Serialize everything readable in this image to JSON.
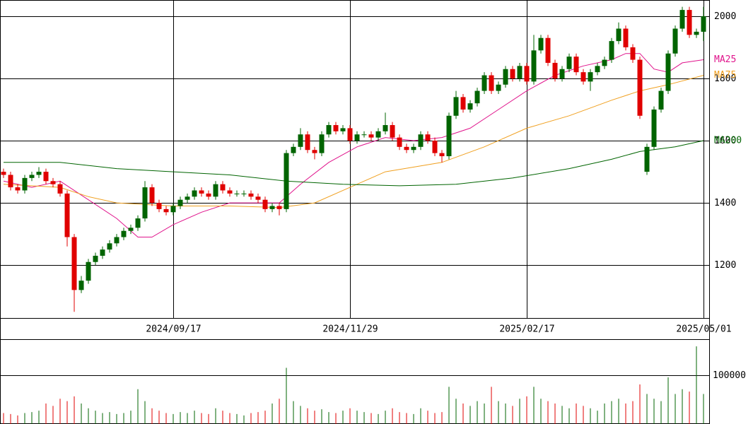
{
  "chart_data": {
    "type": "candlestick",
    "up_color": "#006400",
    "down_color": "#e00000",
    "ylim": [
      1030,
      2052
    ],
    "yticks": [
      1200,
      1400,
      1600,
      1800,
      2000
    ],
    "xlim": [
      -0.5,
      99.8
    ],
    "xticks": [
      {
        "value": 24,
        "label": "2024/09/17"
      },
      {
        "value": 49,
        "label": "2024/11/29"
      },
      {
        "value": 74,
        "label": "2025/02/17"
      },
      {
        "value": 99,
        "label": "2025/05/01"
      }
    ],
    "open": [
      1500,
      1490,
      1450,
      1440,
      1480,
      1490,
      1500,
      1470,
      1460,
      1430,
      1290,
      1120,
      1150,
      1210,
      1230,
      1250,
      1270,
      1290,
      1310,
      1320,
      1350,
      1450,
      1400,
      1380,
      1370,
      1390,
      1410,
      1420,
      1440,
      1430,
      1420,
      1460,
      1440,
      1430,
      1430,
      1430,
      1420,
      1410,
      1380,
      1390,
      1380,
      1560,
      1580,
      1620,
      1570,
      1560,
      1620,
      1650,
      1630,
      1640,
      1600,
      1620,
      1620,
      1610,
      1630,
      1650,
      1610,
      1580,
      1570,
      1580,
      1620,
      1600,
      1560,
      1550,
      1680,
      1740,
      1700,
      1720,
      1760,
      1810,
      1760,
      1780,
      1830,
      1800,
      1840,
      1790,
      1890,
      1930,
      1850,
      1800,
      1830,
      1870,
      1820,
      1790,
      1820,
      1840,
      1860,
      1920,
      1960,
      1900,
      1860,
      1500,
      1580,
      1700,
      1760,
      1880,
      1960,
      2020,
      1940,
      1950
    ],
    "high": [
      1510,
      1500,
      1460,
      1490,
      1500,
      1515,
      1510,
      1480,
      1470,
      1440,
      1300,
      1165,
      1220,
      1240,
      1260,
      1280,
      1300,
      1320,
      1330,
      1360,
      1470,
      1460,
      1410,
      1390,
      1400,
      1420,
      1430,
      1450,
      1450,
      1440,
      1470,
      1470,
      1450,
      1440,
      1440,
      1440,
      1430,
      1420,
      1400,
      1400,
      1570,
      1590,
      1640,
      1630,
      1580,
      1630,
      1660,
      1660,
      1650,
      1650,
      1630,
      1630,
      1630,
      1640,
      1690,
      1660,
      1620,
      1590,
      1590,
      1630,
      1630,
      1610,
      1570,
      1690,
      1760,
      1750,
      1730,
      1770,
      1820,
      1820,
      1790,
      1840,
      1840,
      1850,
      1850,
      1940,
      1940,
      1940,
      1860,
      1840,
      1880,
      1880,
      1830,
      1830,
      1850,
      1870,
      1930,
      1980,
      1970,
      1910,
      1870,
      1590,
      1710,
      1770,
      1890,
      1970,
      2030,
      2030,
      1960,
      2030
    ],
    "low": [
      1480,
      1440,
      1430,
      1430,
      1470,
      1480,
      1460,
      1450,
      1420,
      1260,
      1050,
      1110,
      1140,
      1200,
      1220,
      1240,
      1260,
      1280,
      1300,
      1310,
      1340,
      1390,
      1370,
      1360,
      1360,
      1380,
      1400,
      1410,
      1420,
      1410,
      1410,
      1430,
      1420,
      1420,
      1420,
      1410,
      1400,
      1370,
      1370,
      1360,
      1370,
      1550,
      1570,
      1560,
      1540,
      1550,
      1610,
      1620,
      1620,
      1590,
      1590,
      1610,
      1600,
      1600,
      1620,
      1600,
      1570,
      1560,
      1560,
      1570,
      1590,
      1550,
      1530,
      1540,
      1670,
      1690,
      1690,
      1710,
      1750,
      1750,
      1750,
      1770,
      1790,
      1790,
      1780,
      1780,
      1880,
      1840,
      1790,
      1790,
      1820,
      1810,
      1780,
      1760,
      1810,
      1830,
      1850,
      1910,
      1890,
      1850,
      1670,
      1490,
      1570,
      1690,
      1750,
      1870,
      1950,
      1930,
      1930,
      1920
    ],
    "close": [
      1490,
      1450,
      1440,
      1480,
      1490,
      1500,
      1470,
      1460,
      1430,
      1290,
      1120,
      1150,
      1210,
      1230,
      1250,
      1270,
      1290,
      1310,
      1320,
      1350,
      1450,
      1400,
      1380,
      1370,
      1390,
      1410,
      1420,
      1440,
      1430,
      1420,
      1460,
      1440,
      1430,
      1430,
      1430,
      1420,
      1410,
      1380,
      1390,
      1380,
      1560,
      1580,
      1620,
      1570,
      1560,
      1620,
      1650,
      1630,
      1640,
      1600,
      1620,
      1620,
      1610,
      1630,
      1650,
      1610,
      1580,
      1570,
      1580,
      1620,
      1600,
      1560,
      1550,
      1680,
      1740,
      1700,
      1720,
      1760,
      1810,
      1760,
      1780,
      1830,
      1800,
      1840,
      1790,
      1890,
      1930,
      1850,
      1800,
      1830,
      1870,
      1820,
      1790,
      1820,
      1840,
      1860,
      1920,
      1960,
      1900,
      1860,
      1680,
      1580,
      1700,
      1760,
      1880,
      1960,
      2020,
      1940,
      1950,
      2000
    ],
    "moving_averages": [
      {
        "name": "MA25",
        "color": "#e0148c",
        "x": [
          0,
          4,
          8,
          12,
          16,
          19,
          21,
          24,
          28,
          32,
          36,
          39,
          42,
          46,
          50,
          54,
          58,
          62,
          66,
          70,
          74,
          78,
          82,
          86,
          88,
          90,
          92,
          94,
          96,
          99
        ],
        "values": [
          1470,
          1450,
          1470,
          1410,
          1350,
          1290,
          1290,
          1330,
          1370,
          1400,
          1400,
          1400,
          1460,
          1530,
          1580,
          1610,
          1600,
          1610,
          1640,
          1700,
          1760,
          1810,
          1840,
          1860,
          1880,
          1880,
          1830,
          1820,
          1850,
          1860
        ]
      },
      {
        "name": "MA75",
        "color": "#f0a020",
        "x": [
          0,
          8,
          12,
          16,
          24,
          32,
          39,
          44,
          50,
          54,
          62,
          68,
          74,
          80,
          86,
          90,
          94,
          99
        ],
        "values": [
          1460,
          1450,
          1420,
          1400,
          1390,
          1390,
          1385,
          1400,
          1460,
          1500,
          1530,
          1580,
          1640,
          1680,
          1730,
          1760,
          1780,
          1810
        ]
      },
      {
        "name": "MA200",
        "color": "#006400",
        "x": [
          0,
          8,
          16,
          24,
          32,
          40,
          48,
          56,
          64,
          72,
          80,
          86,
          90,
          95,
          99
        ],
        "values": [
          1530,
          1530,
          1510,
          1500,
          1490,
          1470,
          1460,
          1455,
          1460,
          1480,
          1510,
          1540,
          1565,
          1580,
          1600
        ]
      }
    ],
    "volume": {
      "ylim": [
        0,
        175000
      ],
      "yticks": [
        100000
      ],
      "values": [
        20000,
        18000,
        15000,
        20000,
        22000,
        25000,
        40000,
        35000,
        50000,
        45000,
        55000,
        40000,
        30000,
        25000,
        20000,
        22000,
        18000,
        20000,
        25000,
        70000,
        45000,
        30000,
        25000,
        20000,
        18000,
        22000,
        20000,
        25000,
        20000,
        18000,
        30000,
        25000,
        20000,
        18000,
        15000,
        20000,
        22000,
        25000,
        40000,
        50000,
        115000,
        45000,
        35000,
        30000,
        25000,
        28000,
        22000,
        20000,
        25000,
        30000,
        25000,
        22000,
        20000,
        18000,
        25000,
        30000,
        22000,
        20000,
        18000,
        30000,
        25000,
        20000,
        22000,
        75000,
        50000,
        40000,
        35000,
        45000,
        40000,
        75000,
        45000,
        40000,
        35000,
        50000,
        55000,
        75000,
        50000,
        45000,
        40000,
        35000,
        30000,
        40000,
        35000,
        30000,
        25000,
        40000,
        45000,
        50000,
        40000,
        45000,
        80000,
        60000,
        50000,
        45000,
        95000,
        60000,
        70000,
        65000,
        160000,
        60000
      ]
    }
  }
}
